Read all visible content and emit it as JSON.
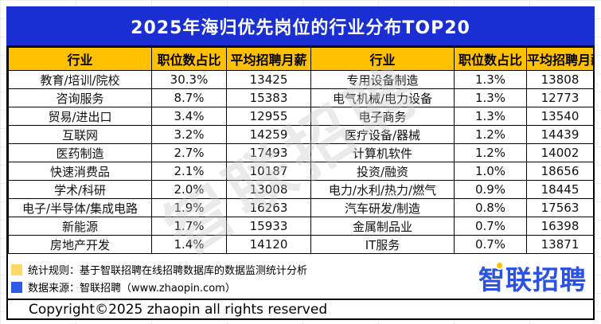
{
  "title": "2025年海归优先岗位的行业分布TOP20",
  "table": {
    "headers": {
      "industry": "行业",
      "pct": "职位数占比",
      "salary": "平均招聘月薪"
    },
    "rows": [
      {
        "left": {
          "industry": "教育/培训/院校",
          "pct": "30.3%",
          "salary": "13425"
        },
        "right": {
          "industry": "专用设备制造",
          "pct": "1.3%",
          "salary": "13808"
        }
      },
      {
        "left": {
          "industry": "咨询服务",
          "pct": "8.7%",
          "salary": "15383"
        },
        "right": {
          "industry": "电气机械/电力设备",
          "pct": "1.3%",
          "salary": "12773"
        }
      },
      {
        "left": {
          "industry": "贸易/进出口",
          "pct": "3.4%",
          "salary": "12955"
        },
        "right": {
          "industry": "电子商务",
          "pct": "1.3%",
          "salary": "13540"
        }
      },
      {
        "left": {
          "industry": "互联网",
          "pct": "3.2%",
          "salary": "14259"
        },
        "right": {
          "industry": "医疗设备/器械",
          "pct": "1.2%",
          "salary": "14439"
        }
      },
      {
        "left": {
          "industry": "医药制造",
          "pct": "2.7%",
          "salary": "17493"
        },
        "right": {
          "industry": "计算机软件",
          "pct": "1.2%",
          "salary": "14002"
        }
      },
      {
        "left": {
          "industry": "快速消费品",
          "pct": "2.1%",
          "salary": "10187"
        },
        "right": {
          "industry": "投资/融资",
          "pct": "1.0%",
          "salary": "18656"
        }
      },
      {
        "left": {
          "industry": "学术/科研",
          "pct": "2.0%",
          "salary": "13008"
        },
        "right": {
          "industry": "电力/水利/热力/燃气",
          "pct": "0.9%",
          "salary": "18445"
        }
      },
      {
        "left": {
          "industry": "电子/半导体/集成电路",
          "pct": "1.9%",
          "salary": "16263"
        },
        "right": {
          "industry": "汽车研发/制造",
          "pct": "0.8%",
          "salary": "17563"
        }
      },
      {
        "left": {
          "industry": "新能源",
          "pct": "1.7%",
          "salary": "15933"
        },
        "right": {
          "industry": "金属制品业",
          "pct": "0.7%",
          "salary": "16398"
        }
      },
      {
        "left": {
          "industry": "房地产开发",
          "pct": "1.4%",
          "salary": "14120"
        },
        "right": {
          "industry": "IT服务",
          "pct": "0.7%",
          "salary": "13871"
        }
      }
    ]
  },
  "watermark": "智联招聘",
  "footer": {
    "note1": "统计规则：基于智联招聘在线招聘数据库的数据监测统计分析",
    "note2": "数据来源：智联招聘（www.zhaopin.com）",
    "copyright": "Copyright©2025 zhaopin all rights reserved",
    "logo_text": "智联招聘"
  },
  "colors": {
    "title_bar_bg": "#1A2FD2",
    "title_text": "#ffffff",
    "header_bg": "#FFC000",
    "swatch_yellow": "#FFD966",
    "swatch_blue": "#2C5BE6",
    "logo_blue": "#2B52E0",
    "watermark_color": "#c9c9c9"
  },
  "chart_data": {
    "type": "table",
    "title": "2025年海归优先岗位的行业分布TOP20",
    "columns": [
      "行业",
      "职位数占比",
      "平均招聘月薪"
    ],
    "rows": [
      [
        "教育/培训/院校",
        "30.3%",
        13425
      ],
      [
        "咨询服务",
        "8.7%",
        15383
      ],
      [
        "贸易/进出口",
        "3.4%",
        12955
      ],
      [
        "互联网",
        "3.2%",
        14259
      ],
      [
        "医药制造",
        "2.7%",
        17493
      ],
      [
        "快速消费品",
        "2.1%",
        10187
      ],
      [
        "学术/科研",
        "2.0%",
        13008
      ],
      [
        "电子/半导体/集成电路",
        "1.9%",
        16263
      ],
      [
        "新能源",
        "1.7%",
        15933
      ],
      [
        "房地产开发",
        "1.4%",
        14120
      ],
      [
        "专用设备制造",
        "1.3%",
        13808
      ],
      [
        "电气机械/电力设备",
        "1.3%",
        12773
      ],
      [
        "电子商务",
        "1.3%",
        13540
      ],
      [
        "医疗设备/器械",
        "1.2%",
        14439
      ],
      [
        "计算机软件",
        "1.2%",
        14002
      ],
      [
        "投资/融资",
        "1.0%",
        18656
      ],
      [
        "电力/水利/热力/燃气",
        "0.9%",
        18445
      ],
      [
        "汽车研发/制造",
        "0.8%",
        17563
      ],
      [
        "金属制品业",
        "0.7%",
        16398
      ],
      [
        "IT服务",
        "0.7%",
        13871
      ]
    ]
  }
}
